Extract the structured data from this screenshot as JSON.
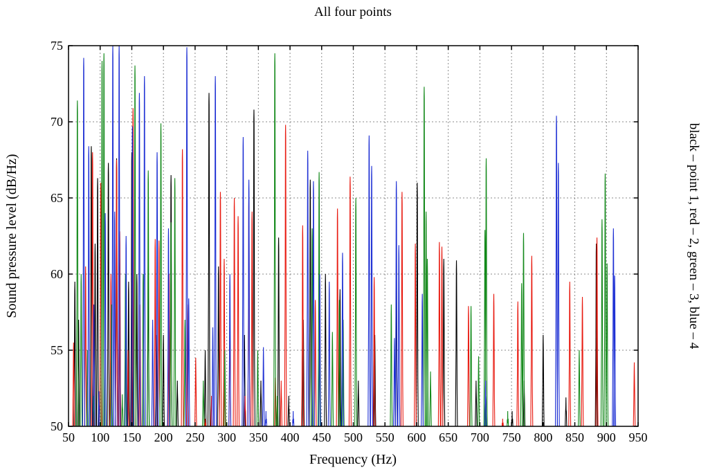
{
  "chart_data": {
    "type": "line",
    "title": "All four points",
    "xlabel": "Frequency (Hz)",
    "ylabel": "Sound pressure level (dB/Hz)",
    "legend_text": "black – point 1, red – 2, green – 3, blue – 4",
    "legend_position": "right, vertical",
    "xlim": [
      50,
      950
    ],
    "ylim": [
      50,
      75
    ],
    "xticks": [
      50,
      100,
      150,
      200,
      250,
      300,
      350,
      400,
      450,
      500,
      550,
      600,
      650,
      700,
      750,
      800,
      850,
      900,
      950
    ],
    "yticks": [
      50,
      55,
      60,
      65,
      70,
      75
    ],
    "grid": true,
    "colors": {
      "point1": "#000000",
      "point2": "#e8190f",
      "point3": "#13891a",
      "point4": "#1e30d4"
    },
    "series": [
      {
        "name": "point 1",
        "color": "#000000",
        "peaks": [
          [
            60,
            59.5
          ],
          [
            66,
            57
          ],
          [
            86,
            68.4
          ],
          [
            92,
            62
          ],
          [
            96,
            66.3
          ],
          [
            113,
            67.3
          ],
          [
            126,
            67.6
          ],
          [
            131,
            61
          ],
          [
            145,
            59.5
          ],
          [
            150,
            68
          ],
          [
            158,
            60
          ],
          [
            176,
            61
          ],
          [
            189,
            56
          ],
          [
            200,
            56
          ],
          [
            212,
            66.5
          ],
          [
            222,
            53
          ],
          [
            266,
            55
          ],
          [
            272,
            71.9
          ],
          [
            287,
            60.5
          ],
          [
            328,
            56
          ],
          [
            343,
            70.8
          ],
          [
            354,
            53
          ],
          [
            382,
            62.4
          ],
          [
            398,
            52
          ],
          [
            421,
            57
          ],
          [
            432,
            66.2
          ],
          [
            456,
            60
          ],
          [
            479,
            59
          ],
          [
            508,
            53
          ],
          [
            534,
            56
          ],
          [
            568,
            59.5
          ],
          [
            601,
            66
          ],
          [
            643,
            61
          ],
          [
            663,
            60.9
          ],
          [
            694,
            53
          ],
          [
            709,
            53
          ],
          [
            751,
            51
          ],
          [
            770,
            53
          ],
          [
            800,
            56
          ],
          [
            836,
            51.9
          ],
          [
            884,
            62
          ]
        ]
      },
      {
        "name": "point 2",
        "color": "#e8190f",
        "peaks": [
          [
            58,
            55.5
          ],
          [
            77,
            60.5
          ],
          [
            88,
            68
          ],
          [
            101,
            66
          ],
          [
            117,
            60
          ],
          [
            126,
            67.5
          ],
          [
            131,
            62.8
          ],
          [
            144,
            55
          ],
          [
            152,
            70.9
          ],
          [
            163,
            58
          ],
          [
            187,
            62.3
          ],
          [
            193,
            62.2
          ],
          [
            209,
            60
          ],
          [
            230,
            68.2
          ],
          [
            238,
            58
          ],
          [
            251,
            54.5
          ],
          [
            266,
            50.5
          ],
          [
            276,
            52
          ],
          [
            290,
            65.4
          ],
          [
            296,
            61
          ],
          [
            305,
            57
          ],
          [
            312,
            65
          ],
          [
            318,
            63.8
          ],
          [
            329,
            52
          ],
          [
            335,
            65
          ],
          [
            340,
            64.1
          ],
          [
            377,
            53.2
          ],
          [
            386,
            53
          ],
          [
            393,
            69.8
          ],
          [
            420,
            63.2
          ],
          [
            440,
            58.3
          ],
          [
            475,
            64.3
          ],
          [
            495,
            66.4
          ],
          [
            533,
            59.8
          ],
          [
            577,
            65.4
          ],
          [
            598,
            62
          ],
          [
            636,
            62.1
          ],
          [
            640,
            61.8
          ],
          [
            682,
            57.9
          ],
          [
            722,
            58.7
          ],
          [
            736,
            50.5
          ],
          [
            760,
            58.2
          ],
          [
            782,
            61.2
          ],
          [
            842,
            59.5
          ],
          [
            862,
            58.5
          ],
          [
            885,
            62.4
          ],
          [
            944,
            54.2
          ]
        ]
      },
      {
        "name": "point 3",
        "color": "#13891a",
        "peaks": [
          [
            64,
            71.4
          ],
          [
            70,
            60
          ],
          [
            80,
            55
          ],
          [
            90,
            52
          ],
          [
            103,
            74
          ],
          [
            106,
            74.5
          ],
          [
            118,
            58
          ],
          [
            135,
            52.1
          ],
          [
            140,
            60
          ],
          [
            155,
            73.7
          ],
          [
            168,
            60
          ],
          [
            176,
            66.8
          ],
          [
            196,
            69.9
          ],
          [
            212,
            63.4
          ],
          [
            218,
            66.3
          ],
          [
            234,
            57
          ],
          [
            263,
            53
          ],
          [
            297,
            55
          ],
          [
            349,
            55
          ],
          [
            376,
            74.5
          ],
          [
            380,
            52
          ],
          [
            435,
            63
          ],
          [
            446,
            66.7
          ],
          [
            467,
            56.2
          ],
          [
            478,
            58.3
          ],
          [
            484,
            57
          ],
          [
            504,
            65
          ],
          [
            560,
            58
          ],
          [
            612,
            72.3
          ],
          [
            615,
            64.1
          ],
          [
            617,
            61
          ],
          [
            622,
            53.6
          ],
          [
            686,
            57.9
          ],
          [
            698,
            54.6
          ],
          [
            708,
            62.9
          ],
          [
            710,
            67.6
          ],
          [
            744,
            51
          ],
          [
            766,
            59.4
          ],
          [
            769,
            62.7
          ],
          [
            857,
            55
          ],
          [
            893,
            63.6
          ],
          [
            898,
            66.6
          ],
          [
            901,
            60.7
          ]
        ]
      },
      {
        "name": "point 4",
        "color": "#1e30d4",
        "peaks": [
          [
            74,
            74.2
          ],
          [
            82,
            68.4
          ],
          [
            90,
            58
          ],
          [
            98,
            52.3
          ],
          [
            108,
            64
          ],
          [
            120,
            75
          ],
          [
            123,
            64.1
          ],
          [
            130,
            75
          ],
          [
            141,
            62.5
          ],
          [
            151,
            69.7
          ],
          [
            162,
            71.9
          ],
          [
            170,
            73
          ],
          [
            183,
            57
          ],
          [
            190,
            68
          ],
          [
            208,
            63
          ],
          [
            237,
            74.9
          ],
          [
            240,
            58.4
          ],
          [
            278,
            56.5
          ],
          [
            282,
            73
          ],
          [
            305,
            60
          ],
          [
            326,
            69
          ],
          [
            335,
            66.2
          ],
          [
            358,
            55.2
          ],
          [
            362,
            51
          ],
          [
            405,
            51
          ],
          [
            428,
            68.1
          ],
          [
            437,
            66.1
          ],
          [
            447,
            60
          ],
          [
            462,
            59.5
          ],
          [
            483,
            61.4
          ],
          [
            525,
            69.1
          ],
          [
            529,
            67.1
          ],
          [
            565,
            55.8
          ],
          [
            568,
            66.1
          ],
          [
            572,
            61.9
          ],
          [
            609,
            58.7
          ],
          [
            709,
            53
          ],
          [
            821,
            70.4
          ],
          [
            824,
            67.3
          ],
          [
            911,
            63
          ],
          [
            913,
            59.9
          ]
        ]
      }
    ]
  }
}
